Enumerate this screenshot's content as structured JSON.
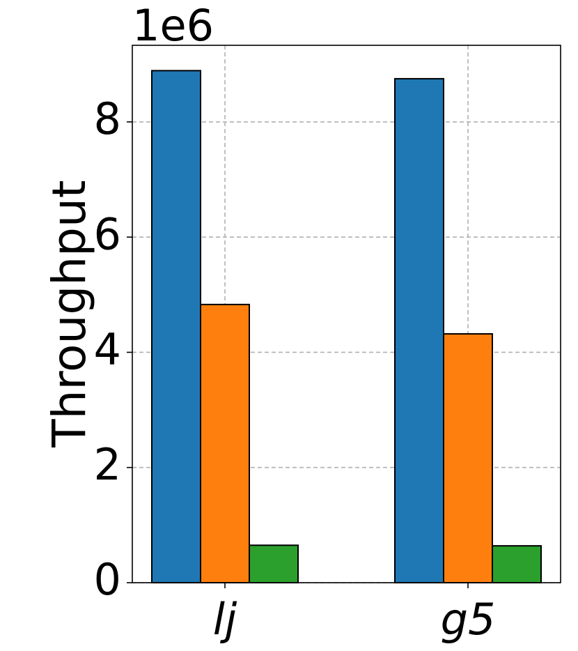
{
  "chart_data": {
    "type": "bar",
    "y_label": "Throughput",
    "y_offset_label": "1e6",
    "categories": [
      "lj",
      "g5"
    ],
    "series": [
      {
        "color": "#1f77b4",
        "values": [
          8.89,
          8.75
        ]
      },
      {
        "color": "#ff7f0e",
        "values": [
          4.83,
          4.32
        ]
      },
      {
        "color": "#2ca02c",
        "values": [
          0.65,
          0.64
        ]
      }
    ],
    "ylim": [
      0,
      9.33
    ],
    "yticks": [
      0,
      2,
      4,
      6,
      8
    ],
    "grid": true
  }
}
